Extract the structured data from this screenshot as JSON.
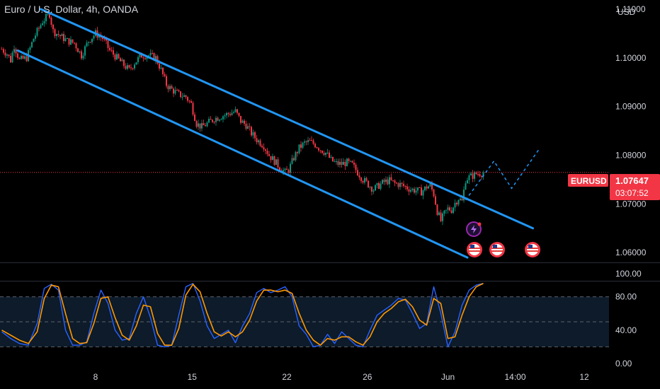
{
  "header": {
    "symbol_title": "Euro / U.S. Dollar, 4h, OANDA",
    "currency": "USD"
  },
  "price_tag": {
    "symbol": "EURUSD",
    "price": "1.07647",
    "countdown": "03:07:52",
    "color": "#f23645"
  },
  "colors": {
    "background": "#000000",
    "up_candle": "#089981",
    "down_candle": "#f23645",
    "channel": "#2196f3",
    "stoch_k": "#2962ff",
    "stoch_d": "#ff9800",
    "price_line": "#f23645"
  },
  "icons": [
    "lightning-event-icon",
    "us-flag-event-icon",
    "us-flag-event-icon",
    "us-flag-event-icon"
  ],
  "chart_data": [
    {
      "type": "candlestick",
      "title": "Euro / U.S. Dollar, 4h, OANDA",
      "y_axis_label": "USD",
      "y_ticks": [
        "1.11000",
        "1.10000",
        "1.09000",
        "1.08000",
        "1.07000",
        "1.06000"
      ],
      "x_ticks": [
        "8",
        "15",
        "22",
        "26",
        "Jun",
        "14:00",
        "12"
      ],
      "ylim": [
        1.058,
        1.111
      ],
      "last_price": 1.07647,
      "close_path": [
        [
          0,
          1.1018
        ],
        [
          3,
          1.1008
        ],
        [
          5,
          1.0995
        ],
        [
          7,
          1.1025
        ],
        [
          10,
          1.0995
        ],
        [
          14,
          1.1
        ],
        [
          18,
          1.104
        ],
        [
          23,
          1.1075
        ],
        [
          27,
          1.109
        ],
        [
          29,
          1.1055
        ],
        [
          33,
          1.1045
        ],
        [
          37,
          1.1035
        ],
        [
          41,
          1.103
        ],
        [
          45,
          1.1005
        ],
        [
          49,
          1.1035
        ],
        [
          53,
          1.105
        ],
        [
          57,
          1.104
        ],
        [
          61,
          1.1015
        ],
        [
          65,
          1.1
        ],
        [
          69,
          1.0985
        ],
        [
          72,
          1.0975
        ],
        [
          75,
          1.099
        ],
        [
          79,
          1.1005
        ],
        [
          83,
          1.1005
        ],
        [
          87,
          1.1
        ],
        [
          90,
          1.0975
        ],
        [
          93,
          1.0945
        ],
        [
          96,
          1.0935
        ],
        [
          100,
          1.0925
        ],
        [
          104,
          1.092
        ],
        [
          107,
          1.0905
        ],
        [
          110,
          1.0865
        ],
        [
          113,
          1.0858
        ],
        [
          116,
          1.0865
        ],
        [
          120,
          1.0875
        ],
        [
          124,
          1.088
        ],
        [
          128,
          1.0885
        ],
        [
          132,
          1.089
        ],
        [
          135,
          1.087
        ],
        [
          138,
          1.0862
        ],
        [
          141,
          1.0845
        ],
        [
          144,
          1.0832
        ],
        [
          148,
          1.082
        ],
        [
          151,
          1.08
        ],
        [
          154,
          1.0788
        ],
        [
          157,
          1.0775
        ],
        [
          160,
          1.0765
        ],
        [
          162,
          1.077
        ],
        [
          165,
          1.0795
        ],
        [
          168,
          1.0815
        ],
        [
          171,
          1.0825
        ],
        [
          174,
          1.0828
        ],
        [
          177,
          1.0822
        ],
        [
          180,
          1.0812
        ],
        [
          183,
          1.0805
        ],
        [
          186,
          1.079
        ],
        [
          189,
          1.0783
        ],
        [
          192,
          1.0782
        ],
        [
          195,
          1.0785
        ],
        [
          198,
          1.078
        ],
        [
          201,
          1.0765
        ],
        [
          204,
          1.075
        ],
        [
          207,
          1.074
        ],
        [
          210,
          1.073
        ],
        [
          213,
          1.0738
        ],
        [
          216,
          1.0745
        ],
        [
          219,
          1.0748
        ],
        [
          222,
          1.0742
        ],
        [
          225,
          1.074
        ],
        [
          228,
          1.0735
        ],
        [
          231,
          1.073
        ],
        [
          234,
          1.0728
        ],
        [
          237,
          1.0725
        ],
        [
          240,
          1.0735
        ],
        [
          242,
          1.0738
        ],
        [
          244,
          1.072
        ],
        [
          246,
          1.0685
        ],
        [
          248,
          1.0665
        ],
        [
          250,
          1.068
        ],
        [
          252,
          1.069
        ],
        [
          254,
          1.0688
        ],
        [
          256,
          1.0702
        ],
        [
          258,
          1.0712
        ],
        [
          260,
          1.0705
        ],
        [
          262,
          1.075
        ],
        [
          264,
          1.0755
        ],
        [
          266,
          1.0758
        ],
        [
          268,
          1.0762
        ],
        [
          270,
          1.0763
        ],
        [
          272,
          1.07647
        ]
      ],
      "channel_lines": [
        {
          "name": "upper",
          "start": [
            22,
            1.11
          ],
          "end": [
            300,
            1.065
          ]
        },
        {
          "name": "lower",
          "start": [
            9,
            1.1015
          ],
          "end": [
            263,
            1.059
          ]
        }
      ],
      "projection_path": [
        [
          262,
          1.0708
        ],
        [
          278,
          1.0788
        ],
        [
          288,
          1.0732
        ],
        [
          304,
          1.0815
        ]
      ]
    },
    {
      "type": "line",
      "title": "",
      "y_ticks": [
        "100.00",
        "80.00",
        "40.00",
        "0.00"
      ],
      "ylim": [
        0,
        100
      ],
      "band": [
        20,
        80
      ],
      "x": [
        0,
        5,
        10,
        15,
        20,
        24,
        28,
        32,
        36,
        40,
        44,
        48,
        52,
        56,
        60,
        64,
        68,
        72,
        76,
        80,
        84,
        88,
        92,
        96,
        100,
        104,
        108,
        112,
        116,
        120,
        124,
        128,
        132,
        136,
        140,
        144,
        148,
        152,
        156,
        160,
        164,
        168,
        172,
        176,
        180,
        184,
        188,
        192,
        196,
        200,
        204,
        208,
        212,
        216,
        220,
        224,
        228,
        232,
        236,
        240,
        244,
        248,
        252,
        256,
        260,
        264,
        268,
        272
      ],
      "series": [
        {
          "values": [
            38,
            30,
            24,
            22,
            48,
            90,
            95,
            88,
            40,
            22,
            22,
            26,
            60,
            88,
            72,
            40,
            28,
            30,
            60,
            80,
            55,
            22,
            20,
            22,
            58,
            92,
            96,
            75,
            45,
            30,
            35,
            40,
            25,
            45,
            60,
            85,
            90,
            85,
            88,
            92,
            80,
            45,
            35,
            20,
            22,
            35,
            24,
            38,
            30,
            22,
            20,
            40,
            58,
            64,
            70,
            78,
            76,
            60,
            42,
            48,
            92,
            60,
            20,
            38,
            70,
            88,
            94,
            96
          ]
        },
        {
          "values": [
            40,
            34,
            28,
            24,
            38,
            78,
            94,
            92,
            60,
            30,
            24,
            25,
            48,
            78,
            80,
            55,
            34,
            28,
            45,
            70,
            68,
            36,
            22,
            22,
            42,
            82,
            95,
            86,
            60,
            38,
            33,
            38,
            32,
            38,
            52,
            75,
            88,
            88,
            86,
            88,
            84,
            60,
            40,
            28,
            22,
            30,
            28,
            32,
            32,
            26,
            22,
            32,
            50,
            60,
            66,
            74,
            77,
            68,
            52,
            46,
            78,
            72,
            30,
            32,
            58,
            80,
            92,
            96
          ]
        }
      ]
    }
  ]
}
